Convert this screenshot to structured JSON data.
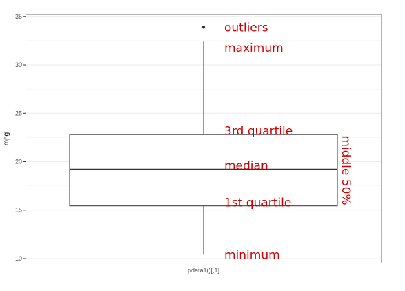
{
  "chart_data": {
    "type": "box",
    "title": "",
    "xlabel": "pdata1()[,1]",
    "ylabel": "mpg",
    "ylim": [
      9.5,
      35.2
    ],
    "yticks": [
      10,
      15,
      20,
      25,
      30,
      35
    ],
    "grid": true,
    "box": {
      "min": 10.4,
      "q1": 15.43,
      "median": 19.2,
      "q3": 22.8,
      "max": 32.4,
      "outliers": [
        33.9
      ]
    },
    "annotations": [
      {
        "name": "outliers-annotation",
        "text": "outliers",
        "y": 33.9
      },
      {
        "name": "maximum-annotation",
        "text": "maximum",
        "y": 31.8
      },
      {
        "name": "q3-annotation",
        "text": "3rd quartile",
        "y": 23.2
      },
      {
        "name": "median-annotation",
        "text": "median",
        "y": 19.6
      },
      {
        "name": "q1-annotation",
        "text": "1st quartile",
        "y": 15.8
      },
      {
        "name": "minimum-annotation",
        "text": "minimum",
        "y": 10.4
      }
    ],
    "bracket_label": "middle 50%"
  },
  "colors": {
    "annotation": "#cc0000",
    "panel_border": "#b3b3b3",
    "grid": "#ebebeb",
    "box": "#333333"
  }
}
